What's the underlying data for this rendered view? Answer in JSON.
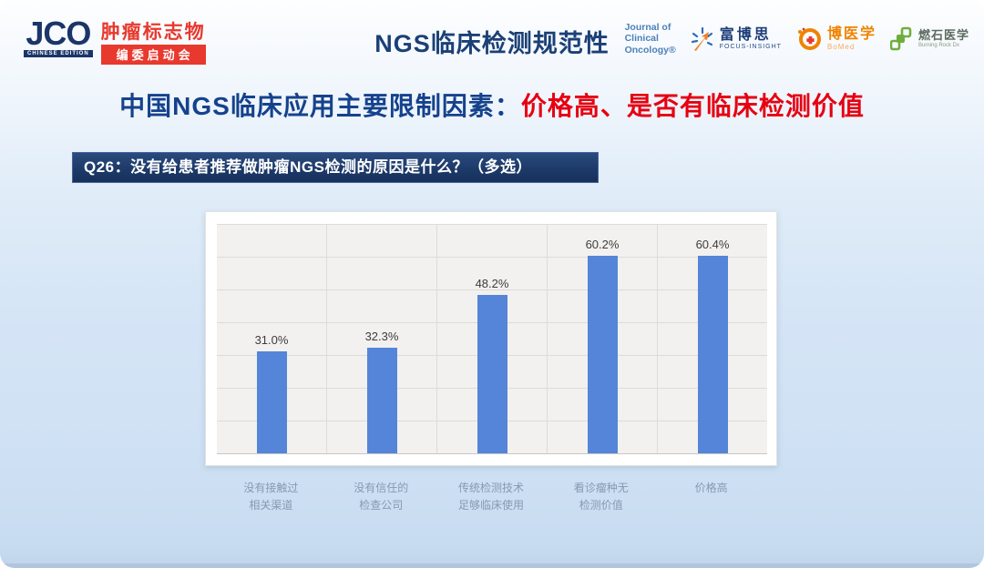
{
  "slide": {
    "logo": {
      "acronym": "JCO",
      "edition": "CHINESE EDITION",
      "badge_title": "肿瘤标志物",
      "badge_subtitle": "编委启动会"
    },
    "title": "NGS临床检测规范性",
    "partners": {
      "jco_journal": {
        "line1": "Journal of",
        "line2": "Clinical",
        "line3": "Oncology®"
      },
      "focus_insight": {
        "name": "富博思",
        "subtitle": "FOCUS-INSIGHT"
      },
      "bomed": {
        "name": "博医学",
        "subtitle": "BoMed"
      },
      "burning_rock": {
        "name": "燃石医学",
        "subtitle": "Burning Rock Dx"
      }
    },
    "heading": {
      "prefix": "中国NGS临床应用主要限制因素：",
      "highlight": "价格高、是否有临床检测价值"
    },
    "question": "Q26：没有给患者推荐做肿瘤NGS检测的原因是什么？（多选）",
    "colors": {
      "navy": "#15428c",
      "red": "#e60012",
      "banner_bg": "#1d3a69",
      "bar_blue": "#5585d8"
    }
  },
  "chart_data": {
    "type": "bar",
    "title": "",
    "categories": [
      [
        "没有接触过",
        "相关渠道"
      ],
      [
        "没有信任的",
        "检查公司"
      ],
      [
        "传统检测技术",
        "足够临床使用"
      ],
      [
        "看诊瘤种无",
        "检测价值"
      ],
      [
        "价格高"
      ]
    ],
    "values": [
      31.0,
      32.3,
      48.2,
      60.2,
      60.4
    ],
    "value_labels": [
      "31.0%",
      "32.3%",
      "48.2%",
      "60.2%",
      "60.4%"
    ],
    "xlabel": "",
    "ylabel": "",
    "ylim": [
      0,
      70
    ],
    "grid_step": 10,
    "grid": "on",
    "legend": "none",
    "bar_color": "#5585d8"
  }
}
